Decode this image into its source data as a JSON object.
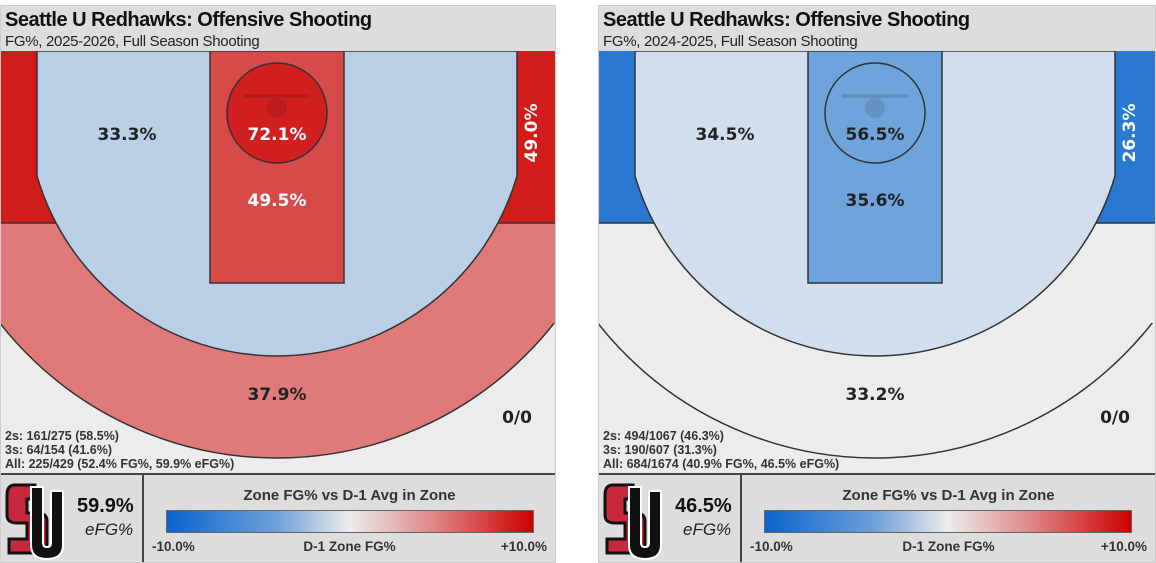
{
  "panels": [
    {
      "title": "Seattle U Redhawks: Offensive Shooting",
      "subtitle": "FG%, 2025-2026, Full Season Shooting",
      "zones": {
        "rim": "72.1%",
        "paint": "49.5%",
        "midrange": "33.3%",
        "right_corner": "49.0%",
        "left_corner": "",
        "above_break_3": "37.9%",
        "deep": "0/0"
      },
      "colors": {
        "rim": "#d11f1f",
        "paint": "#d64a4a",
        "midrange": "#b9cfe6",
        "corner": "#d21b1b",
        "three": "#e07a7a",
        "bg": "#ececec"
      },
      "stats": [
        "2s: 161/275 (58.5%)",
        "3s: 64/154 (41.6%)",
        "All: 225/429 (52.4% FG%, 59.9% eFG%)"
      ],
      "efg_value": "59.9%",
      "efg_label": "eFG%"
    },
    {
      "title": "Seattle U Redhawks: Offensive Shooting",
      "subtitle": "FG%, 2024-2025, Full Season Shooting",
      "zones": {
        "rim": "56.5%",
        "paint": "35.6%",
        "midrange": "34.5%",
        "right_corner": "26.3%",
        "left_corner": "",
        "above_break_3": "33.2%",
        "deep": "0/0"
      },
      "colors": {
        "rim": "#6fa3dc",
        "paint": "#6fa3dc",
        "midrange": "#d0deee",
        "corner": "#2a78d0",
        "three": "#ececec",
        "bg": "#ececec"
      },
      "stats": [
        "2s: 494/1067 (46.3%)",
        "3s: 190/607 (31.3%)",
        "All: 684/1674 (40.9% FG%, 46.5% eFG%)"
      ],
      "efg_value": "46.5%",
      "efg_label": "eFG%"
    }
  ],
  "legend": {
    "title": "Zone FG% vs D-1 Avg in Zone",
    "min": "-10.0%",
    "mid": "D-1 Zone FG%",
    "max": "+10.0%"
  },
  "chart_data": {
    "type": "heatmap",
    "title": "Seattle U Redhawks: Offensive Shooting",
    "series": [
      {
        "name": "2025-2026",
        "zones": {
          "rim": 72.1,
          "paint": 49.5,
          "midrange": 33.3,
          "right_corner_3": 49.0,
          "above_break_3": 37.9
        }
      },
      {
        "name": "2024-2025",
        "zones": {
          "rim": 56.5,
          "paint": 35.6,
          "midrange": 34.5,
          "right_corner_3": 26.3,
          "above_break_3": 33.2
        }
      }
    ],
    "color_scale": {
      "min": -10,
      "max": 10,
      "unit": "% vs D-1 avg"
    }
  }
}
